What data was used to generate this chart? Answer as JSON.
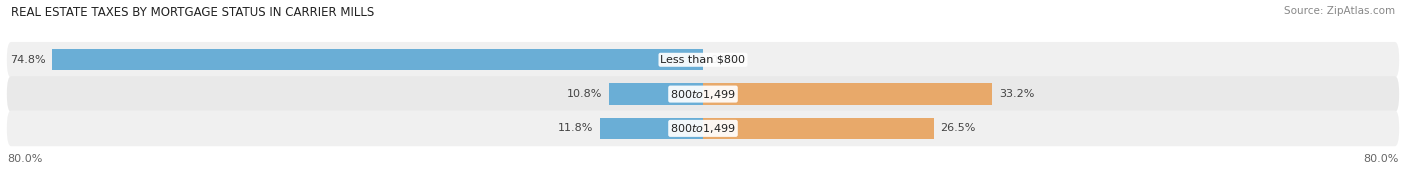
{
  "title": "REAL ESTATE TAXES BY MORTGAGE STATUS IN CARRIER MILLS",
  "source": "Source: ZipAtlas.com",
  "rows": [
    {
      "label": "Less than $800",
      "without_mortgage": 74.8,
      "with_mortgage": 0.0
    },
    {
      "label": "$800 to $1,499",
      "without_mortgage": 10.8,
      "with_mortgage": 33.2
    },
    {
      "label": "$800 to $1,499",
      "without_mortgage": 11.8,
      "with_mortgage": 26.5
    }
  ],
  "x_min": -80.0,
  "x_max": 80.0,
  "x_left_label": "80.0%",
  "x_right_label": "80.0%",
  "color_without": "#6aaed6",
  "color_with": "#e8a96a",
  "bar_height": 0.62,
  "row_bg_colors": [
    "#efefef",
    "#e8e8e8",
    "#efefef"
  ],
  "title_fontsize": 8.5,
  "source_fontsize": 7.5,
  "label_fontsize": 8,
  "value_fontsize": 8,
  "tick_fontsize": 8,
  "legend_fontsize": 8,
  "background_color": "#ffffff"
}
